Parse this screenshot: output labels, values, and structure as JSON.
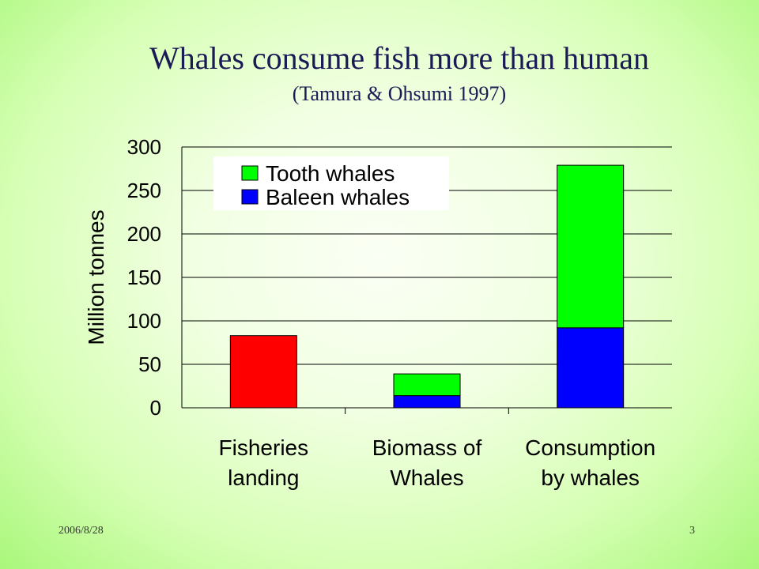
{
  "slide": {
    "title": "Whales consume fish more than human",
    "subtitle": "(Tamura & Ohsumi  1997)",
    "footer_date": "2006/8/28",
    "page_number": "3"
  },
  "colors": {
    "fisheries": "#ff0000",
    "tooth_whales": "#00ff00",
    "baleen_whales": "#0000ff"
  },
  "chart_data": {
    "type": "bar",
    "stacked": true,
    "ylabel": "Million tonnes",
    "ylim": [
      0,
      300
    ],
    "yticks": [
      "0",
      "50",
      "100",
      "150",
      "200",
      "250",
      "300"
    ],
    "grid": true,
    "legend_position": "top-left",
    "categories": [
      [
        "Fisheries",
        "landing"
      ],
      [
        "Biomass of",
        "Whales"
      ],
      [
        "Consumption",
        "by whales"
      ]
    ],
    "series": [
      {
        "name": "",
        "key": "fisheries",
        "values": [
          83,
          0,
          0
        ]
      },
      {
        "name": "Baleen whales",
        "key": "baleen_whales",
        "values": [
          0,
          14,
          92
        ]
      },
      {
        "name": "Tooth whales",
        "key": "tooth_whales",
        "values": [
          0,
          25,
          187
        ]
      }
    ],
    "legend": [
      "Tooth whales",
      "Baleen whales"
    ]
  }
}
